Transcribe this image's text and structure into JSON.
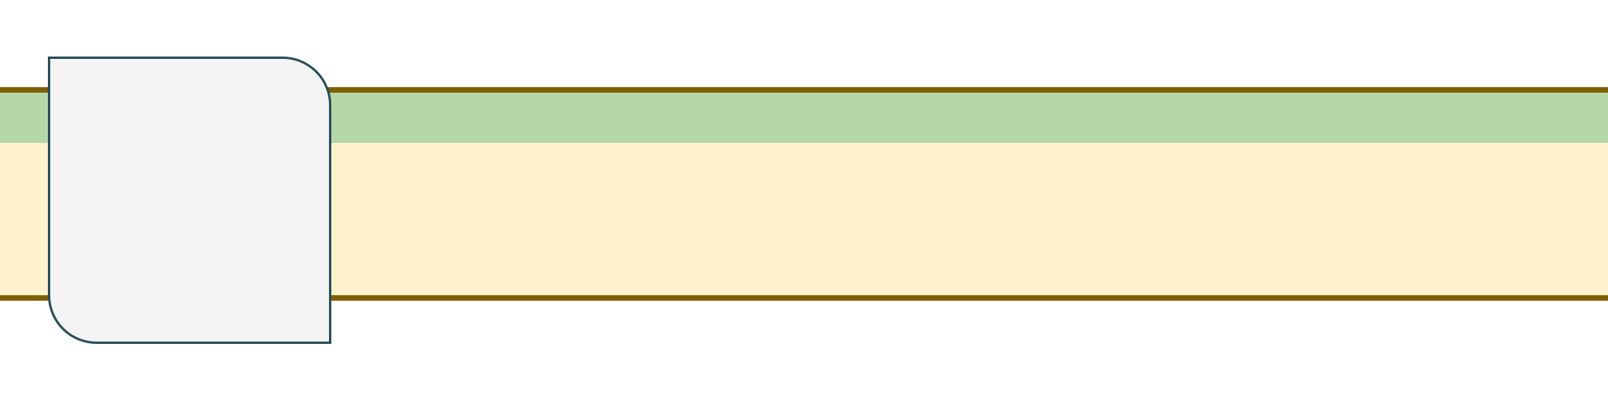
{
  "diagram": {
    "colors": {
      "background": "#ffffff",
      "band_border": "#7f6000",
      "band_top_fill": "#b6d7a8",
      "band_main_fill": "#fff2cc",
      "node_fill": "#f3f3f3",
      "node_border": "#274e5c"
    },
    "shapes": {
      "band": "horizontal-band",
      "node": "rounded-rectangle-top-right-bottom-left-corners"
    }
  }
}
